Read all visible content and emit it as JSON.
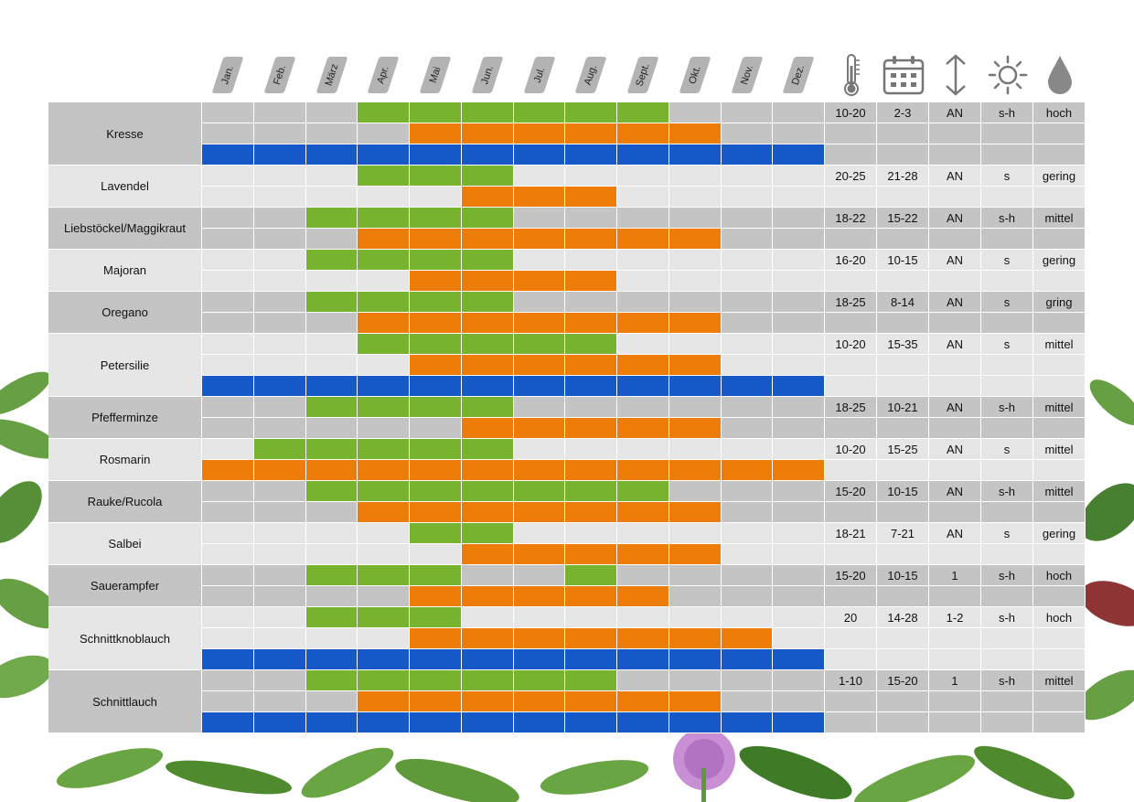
{
  "months": [
    "Jan.",
    "Feb.",
    "März",
    "Apr.",
    "Mai",
    "Jun.",
    "Jul.",
    "Aug.",
    "Sept.",
    "Okt.",
    "Nov.",
    "Dez."
  ],
  "icons": [
    "thermometer-icon",
    "calendar-icon",
    "height-arrow-icon",
    "sun-icon",
    "water-drop-icon"
  ],
  "colors": {
    "sow": "#77b32f",
    "harvest": "#ee7c08",
    "year_round": "#1758c9",
    "dark_row": "#c4c4c4",
    "light_row": "#e6e6e6"
  },
  "herbs": [
    {
      "name": "Kresse",
      "temp": "10-20",
      "days": "2-3",
      "height": "AN",
      "sun": "s-h",
      "water": "hoch",
      "sow": [
        4,
        9
      ],
      "harvest": [
        5,
        10
      ],
      "year_round": true
    },
    {
      "name": "Lavendel",
      "temp": "20-25",
      "days": "21-28",
      "height": "AN",
      "sun": "s",
      "water": "gering",
      "sow": [
        4,
        6
      ],
      "harvest": [
        6,
        8
      ],
      "year_round": false
    },
    {
      "name": "Liebstöckel/Maggikraut",
      "temp": "18-22",
      "days": "15-22",
      "height": "AN",
      "sun": "s-h",
      "water": "mittel",
      "sow": [
        3,
        6
      ],
      "harvest": [
        4,
        10
      ],
      "year_round": false
    },
    {
      "name": "Majoran",
      "temp": "16-20",
      "days": "10-15",
      "height": "AN",
      "sun": "s",
      "water": "gering",
      "sow": [
        3,
        6
      ],
      "harvest": [
        5,
        8
      ],
      "year_round": false
    },
    {
      "name": "Oregano",
      "temp": "18-25",
      "days": "8-14",
      "height": "AN",
      "sun": "s",
      "water": "gring",
      "sow": [
        3,
        6
      ],
      "harvest": [
        4,
        10
      ],
      "year_round": false
    },
    {
      "name": "Petersilie",
      "temp": "10-20",
      "days": "15-35",
      "height": "AN",
      "sun": "s",
      "water": "mittel",
      "sow": [
        4,
        8
      ],
      "harvest": [
        5,
        10
      ],
      "year_round": true
    },
    {
      "name": "Pfefferminze",
      "temp": "18-25",
      "days": "10-21",
      "height": "AN",
      "sun": "s-h",
      "water": "mittel",
      "sow": [
        3,
        6
      ],
      "harvest": [
        6,
        10
      ],
      "year_round": false
    },
    {
      "name": "Rosmarin",
      "temp": "10-20",
      "days": "15-25",
      "height": "AN",
      "sun": "s",
      "water": "mittel",
      "sow": [
        2,
        6
      ],
      "harvest": [
        1,
        12
      ],
      "year_round": false
    },
    {
      "name": "Rauke/Rucola",
      "temp": "15-20",
      "days": "10-15",
      "height": "AN",
      "sun": "s-h",
      "water": "mittel",
      "sow": [
        3,
        9
      ],
      "harvest": [
        4,
        10
      ],
      "year_round": false
    },
    {
      "name": "Salbei",
      "temp": "18-21",
      "days": "7-21",
      "height": "AN",
      "sun": "s",
      "water": "gering",
      "sow": [
        5,
        6
      ],
      "harvest": [
        6,
        10
      ],
      "year_round": false
    },
    {
      "name": "Sauerampfer",
      "temp": "15-20",
      "days": "10-15",
      "height": "1",
      "sun": "s-h",
      "water": "hoch",
      "sow": [
        3,
        5
      ],
      "harvest": [
        5,
        9
      ],
      "sow2": [
        8,
        8
      ],
      "year_round": false
    },
    {
      "name": "Schnittknoblauch",
      "temp": "20",
      "days": "14-28",
      "height": "1-2",
      "sun": "s-h",
      "water": "hoch",
      "sow": [
        3,
        5
      ],
      "harvest": [
        5,
        11
      ],
      "year_round": true
    },
    {
      "name": "Schnittlauch",
      "temp": "1-10",
      "days": "15-20",
      "height": "1",
      "sun": "s-h",
      "water": "mittel",
      "sow": [
        3,
        8
      ],
      "harvest": [
        4,
        10
      ],
      "year_round": true
    }
  ]
}
